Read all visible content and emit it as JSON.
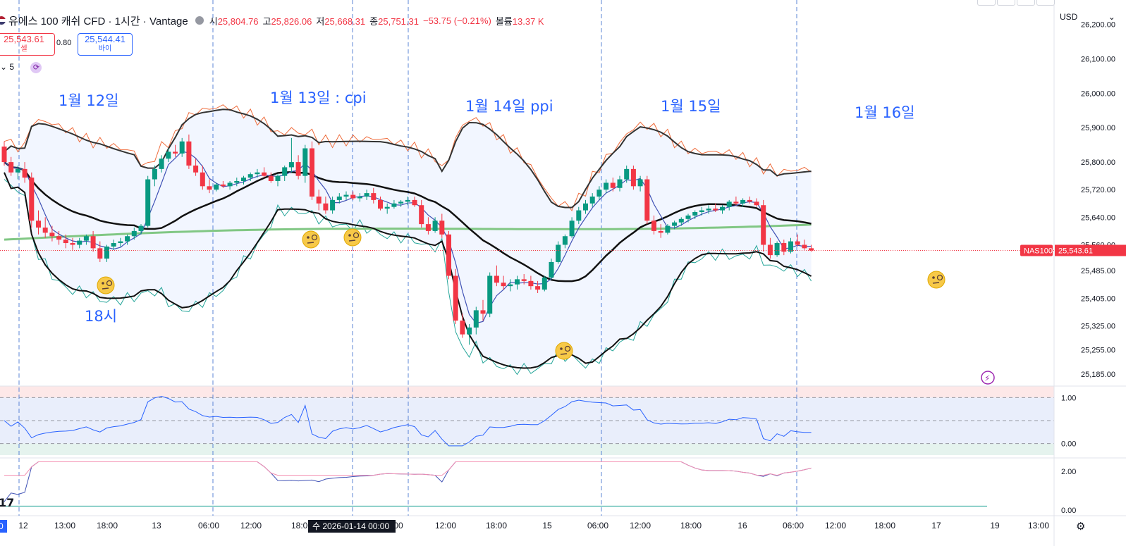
{
  "header": {
    "symbol": "유에스 100 캐쉬 CFD · 1시간 · Vantage",
    "open_label": "시",
    "open": "25,804.76",
    "high_label": "고",
    "high": "25,826.06",
    "low_label": "저",
    "low": "25,668.31",
    "close_label": "종",
    "close": "25,751.31",
    "change": "−53.75 (−0.21%)",
    "volume_label": "볼륨",
    "volume": "13.37 K"
  },
  "trade": {
    "sell_price": "25,543.61",
    "sell_label": "셀",
    "spread": "0.80",
    "buy_price": "25,544.41",
    "buy_label": "바이"
  },
  "indicator_count": "5",
  "currency": "USD",
  "annotations": [
    "1월 12일",
    "1월 13일 : cpi",
    "1월 14일 ppi",
    "1월 15일",
    "1월 16일",
    "18시"
  ],
  "colors": {
    "up": "#089981",
    "down": "#f23645",
    "ma_green": "#81c784",
    "band": "#2962ff",
    "accent": "#2962ff"
  },
  "chart_data": {
    "type": "candlestick",
    "symbol": "NAS100",
    "last_price": 25543.61,
    "price_axis": {
      "min": 25150,
      "max": 26250,
      "ticks": [
        26200,
        26100,
        26000,
        25900,
        25800,
        25720,
        25640,
        25560,
        25485,
        25405,
        25325,
        25255,
        25185
      ]
    },
    "time_ticks": [
      "12",
      "13:00",
      "18:00",
      "13",
      "06:00",
      "12:00",
      "18:00",
      "15",
      "06:00",
      "12:00",
      "18:00",
      "16",
      "06:00",
      "12:00",
      "18:00",
      "17",
      "19",
      "13:00"
    ],
    "cursor_label": "수 2026-01-14   00:00",
    "candles": [
      [
        25845,
        25860,
        25790,
        25800
      ],
      [
        25800,
        25815,
        25760,
        25770
      ],
      [
        25770,
        25790,
        25750,
        25780
      ],
      [
        25780,
        25800,
        25740,
        25755
      ],
      [
        25755,
        25770,
        25610,
        25630
      ],
      [
        25630,
        25660,
        25590,
        25610
      ],
      [
        25610,
        25640,
        25580,
        25595
      ],
      [
        25595,
        25615,
        25570,
        25585
      ],
      [
        25585,
        25600,
        25560,
        25575
      ],
      [
        25575,
        25590,
        25550,
        25565
      ],
      [
        25565,
        25580,
        25545,
        25560
      ],
      [
        25560,
        25580,
        25550,
        25572
      ],
      [
        25572,
        25590,
        25560,
        25585
      ],
      [
        25585,
        25600,
        25540,
        25550
      ],
      [
        25550,
        25570,
        25510,
        25520
      ],
      [
        25520,
        25560,
        25510,
        25555
      ],
      [
        25555,
        25575,
        25545,
        25565
      ],
      [
        25565,
        25580,
        25555,
        25570
      ],
      [
        25570,
        25590,
        25560,
        25585
      ],
      [
        25585,
        25610,
        25575,
        25600
      ],
      [
        25600,
        25620,
        25590,
        25615
      ],
      [
        25615,
        25760,
        25610,
        25750
      ],
      [
        25750,
        25790,
        25730,
        25780
      ],
      [
        25780,
        25820,
        25770,
        25810
      ],
      [
        25810,
        25840,
        25800,
        25830
      ],
      [
        25830,
        25850,
        25815,
        25825
      ],
      [
        25825,
        25870,
        25815,
        25860
      ],
      [
        25860,
        25880,
        25780,
        25790
      ],
      [
        25790,
        25810,
        25760,
        25770
      ],
      [
        25770,
        25790,
        25720,
        25730
      ],
      [
        25730,
        25750,
        25710,
        25720
      ],
      [
        25720,
        25740,
        25715,
        25735
      ],
      [
        25735,
        25745,
        25725,
        25730
      ],
      [
        25730,
        25745,
        25720,
        25740
      ],
      [
        25740,
        25755,
        25730,
        25745
      ],
      [
        25745,
        25760,
        25735,
        25755
      ],
      [
        25755,
        25770,
        25745,
        25765
      ],
      [
        25765,
        25780,
        25755,
        25770
      ],
      [
        25770,
        25785,
        25755,
        25760
      ],
      [
        25760,
        25770,
        25740,
        25745
      ],
      [
        25745,
        25765,
        25730,
        25760
      ],
      [
        25760,
        25790,
        25745,
        25785
      ],
      [
        25785,
        25870,
        25770,
        25800
      ],
      [
        25800,
        25820,
        25750,
        25760
      ],
      [
        25760,
        25850,
        25740,
        25840
      ],
      [
        25840,
        25860,
        25690,
        25700
      ],
      [
        25700,
        25720,
        25660,
        25680
      ],
      [
        25680,
        25700,
        25650,
        25660
      ],
      [
        25660,
        25700,
        25650,
        25690
      ],
      [
        25690,
        25710,
        25680,
        25700
      ],
      [
        25700,
        25715,
        25690,
        25705
      ],
      [
        25705,
        25715,
        25690,
        25695
      ],
      [
        25695,
        25710,
        25685,
        25700
      ],
      [
        25700,
        25720,
        25690,
        25710
      ],
      [
        25710,
        25725,
        25680,
        25690
      ],
      [
        25690,
        25700,
        25660,
        25665
      ],
      [
        25665,
        25680,
        25650,
        25670
      ],
      [
        25670,
        25690,
        25665,
        25680
      ],
      [
        25680,
        25690,
        25670,
        25685
      ],
      [
        25685,
        25700,
        25675,
        25690
      ],
      [
        25690,
        25700,
        25670,
        25675
      ],
      [
        25675,
        25690,
        25610,
        25620
      ],
      [
        25620,
        25640,
        25590,
        25600
      ],
      [
        25600,
        25640,
        25595,
        25630
      ],
      [
        25630,
        25650,
        25580,
        25590
      ],
      [
        25590,
        25600,
        25460,
        25470
      ],
      [
        25470,
        25490,
        25330,
        25340
      ],
      [
        25340,
        25360,
        25290,
        25300
      ],
      [
        25300,
        25330,
        25270,
        25320
      ],
      [
        25320,
        25380,
        25300,
        25370
      ],
      [
        25370,
        25400,
        25340,
        25360
      ],
      [
        25360,
        25480,
        25350,
        25470
      ],
      [
        25470,
        25500,
        25440,
        25450
      ],
      [
        25450,
        25470,
        25430,
        25440
      ],
      [
        25440,
        25460,
        25425,
        25445
      ],
      [
        25445,
        25470,
        25430,
        25460
      ],
      [
        25460,
        25475,
        25445,
        25455
      ],
      [
        25455,
        25470,
        25430,
        25440
      ],
      [
        25440,
        25455,
        25420,
        25430
      ],
      [
        25430,
        25470,
        25425,
        25465
      ],
      [
        25465,
        25520,
        25460,
        25510
      ],
      [
        25510,
        25570,
        25505,
        25560
      ],
      [
        25560,
        25590,
        25550,
        25585
      ],
      [
        25585,
        25640,
        25580,
        25630
      ],
      [
        25630,
        25670,
        25620,
        25660
      ],
      [
        25660,
        25690,
        25650,
        25680
      ],
      [
        25680,
        25710,
        25670,
        25700
      ],
      [
        25700,
        25730,
        25690,
        25720
      ],
      [
        25720,
        25750,
        25710,
        25740
      ],
      [
        25740,
        25755,
        25715,
        25725
      ],
      [
        25725,
        25760,
        25715,
        25750
      ],
      [
        25750,
        25790,
        25740,
        25780
      ],
      [
        25780,
        25790,
        25720,
        25730
      ],
      [
        25730,
        25760,
        25715,
        25750
      ],
      [
        25750,
        25760,
        25620,
        25630
      ],
      [
        25630,
        25645,
        25590,
        25600
      ],
      [
        25600,
        25620,
        25580,
        25595
      ],
      [
        25595,
        25620,
        25590,
        25615
      ],
      [
        25615,
        25630,
        25605,
        25625
      ],
      [
        25625,
        25640,
        25615,
        25635
      ],
      [
        25635,
        25650,
        25625,
        25645
      ],
      [
        25645,
        25660,
        25635,
        25655
      ],
      [
        25655,
        25670,
        25645,
        25660
      ],
      [
        25660,
        25675,
        25650,
        25665
      ],
      [
        25665,
        25680,
        25655,
        25660
      ],
      [
        25660,
        25675,
        25650,
        25670
      ],
      [
        25670,
        25690,
        25660,
        25685
      ],
      [
        25685,
        25700,
        25675,
        25680
      ],
      [
        25680,
        25695,
        25670,
        25690
      ],
      [
        25690,
        25700,
        25680,
        25685
      ],
      [
        25685,
        25695,
        25670,
        25675
      ],
      [
        25675,
        25690,
        25540,
        25560
      ],
      [
        25560,
        25580,
        25520,
        25530
      ],
      [
        25530,
        25570,
        25525,
        25565
      ],
      [
        25565,
        25575,
        25530,
        25540
      ],
      [
        25540,
        25580,
        25535,
        25570
      ],
      [
        25570,
        25590,
        25555,
        25560
      ],
      [
        25560,
        25575,
        25545,
        25550
      ],
      [
        25550,
        25560,
        25540,
        25543.61
      ]
    ],
    "stoch_axis": {
      "min": -0.25,
      "max": 1.25,
      "ticks": [
        1.0,
        0.0
      ]
    },
    "lower_axis": {
      "min": -0.3,
      "max": 2.7,
      "ticks": [
        2.0,
        0.0
      ]
    }
  }
}
